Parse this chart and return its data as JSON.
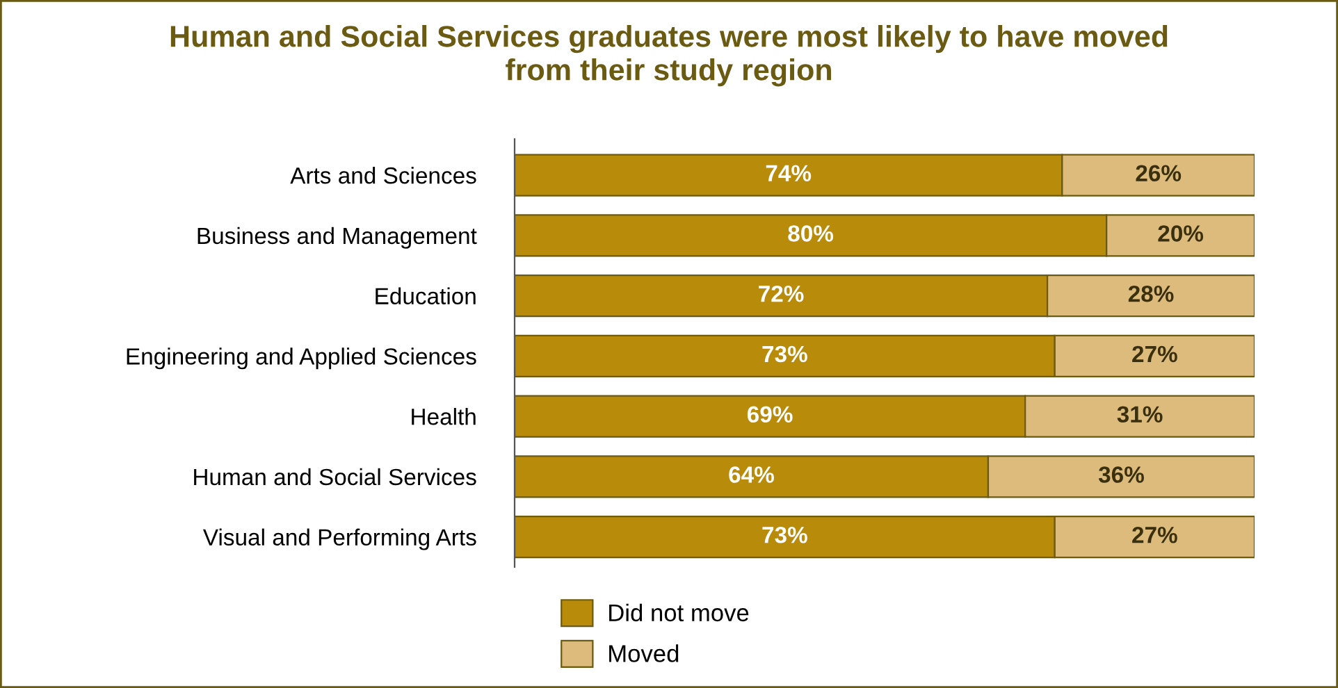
{
  "chart_data": {
    "type": "bar",
    "orientation": "horizontal",
    "stacked": true,
    "title": "Human and Social Services graduates were most likely to have moved\nfrom their study region",
    "categories": [
      "Arts and Sciences",
      "Business and Management",
      "Education",
      "Engineering and Applied Sciences",
      "Health",
      "Human and Social Services",
      "Visual and Performing Arts"
    ],
    "series": [
      {
        "name": "Did not move",
        "color": "#b98b0b",
        "values": [
          74,
          80,
          72,
          73,
          69,
          64,
          73
        ],
        "value_labels": [
          "74%",
          "80%",
          "72%",
          "73%",
          "69%",
          "64%",
          "73%"
        ]
      },
      {
        "name": "Moved",
        "color": "#dcbb7c",
        "values": [
          26,
          20,
          28,
          27,
          31,
          36,
          27
        ],
        "value_labels": [
          "26%",
          "20%",
          "28%",
          "27%",
          "31%",
          "36%",
          "27%"
        ]
      }
    ],
    "tick_labels": "y",
    "legend": "bottom",
    "grid": false
  }
}
